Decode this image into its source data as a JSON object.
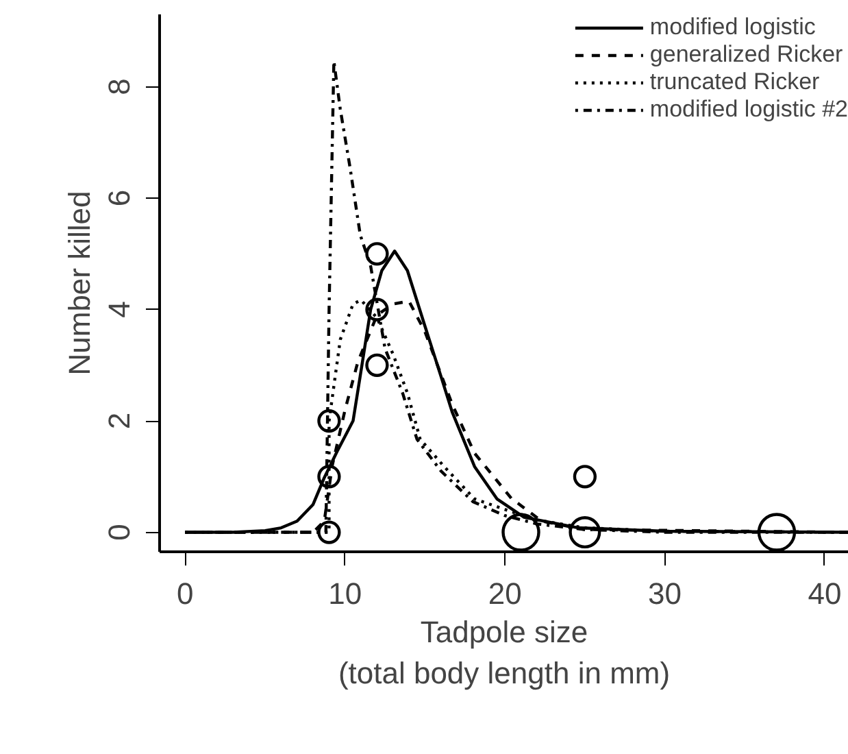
{
  "chart_data": {
    "type": "line",
    "xlabel": "Tadpole size\n(total body length in mm)",
    "ylabel": "Number killed",
    "xlim": [
      -1.6,
      41.5
    ],
    "ylim": [
      -0.35,
      9.3
    ],
    "xticks": [
      0,
      10,
      20,
      30,
      40
    ],
    "yticks": [
      0,
      2,
      4,
      6,
      8
    ],
    "grid": false,
    "legend": "top right",
    "marker": "none",
    "series": [
      {
        "name": "modified logistic",
        "color": "#000000",
        "line_style": "solid",
        "x": [
          0,
          3,
          5,
          6,
          7,
          8,
          8.7,
          9.5,
          10.5,
          11,
          11.6,
          12.3,
          13.1,
          13.9,
          15,
          16,
          16.7,
          18.1,
          19.5,
          21.2,
          24.6,
          30,
          41.5
        ],
        "values": [
          0,
          0,
          0.03,
          0.08,
          0.2,
          0.5,
          0.98,
          1.45,
          2.0,
          2.9,
          4.0,
          4.7,
          5.05,
          4.7,
          3.7,
          2.8,
          2.16,
          1.18,
          0.6,
          0.27,
          0.08,
          0.02,
          0
        ]
      },
      {
        "name": "generalized Ricker",
        "color": "#000000",
        "line_style": "dashed",
        "x": [
          0,
          8,
          8.7,
          9.2,
          10,
          10.8,
          12,
          13,
          14,
          15,
          16.7,
          18.1,
          20.4,
          22.3,
          25,
          41.5
        ],
        "values": [
          0,
          0,
          0.2,
          1.2,
          2.2,
          3.06,
          3.9,
          4.1,
          4.15,
          3.6,
          2.3,
          1.42,
          0.61,
          0.2,
          0.05,
          0
        ]
      },
      {
        "name": "truncated Ricker",
        "color": "#000000",
        "line_style": "dotted",
        "x": [
          0,
          9,
          9,
          9.7,
          10.5,
          11,
          12,
          13,
          13.9,
          14.7,
          16.2,
          18.1,
          20.4,
          22,
          25,
          30,
          41.5
        ],
        "values": [
          0,
          0,
          2.0,
          3.46,
          4.1,
          4.17,
          3.85,
          3.2,
          2.5,
          1.67,
          1.18,
          0.6,
          0.37,
          0.22,
          0.08,
          0.02,
          0
        ]
      },
      {
        "name": "modified logistic #2",
        "color": "#000000",
        "line_style": "dotdash",
        "x": [
          0,
          8.8,
          9.0,
          9.3,
          9.7,
          10.3,
          10.95,
          11.6,
          12.5,
          13.6,
          14.5,
          16,
          18,
          20,
          22,
          25,
          30,
          41.5
        ],
        "values": [
          0,
          0,
          4.0,
          8.46,
          7.6,
          6.57,
          5.34,
          4.78,
          3.3,
          2.5,
          1.67,
          1.1,
          0.55,
          0.3,
          0.15,
          0.05,
          0,
          0
        ]
      },
      {
        "type": "bubble",
        "color": "#000000",
        "marker": "circle",
        "x": [
          9,
          9,
          9,
          12,
          12,
          12,
          21,
          25,
          25,
          37
        ],
        "values": [
          0,
          1,
          2,
          3,
          4,
          5,
          0,
          0,
          1,
          0
        ],
        "sizes": [
          0.33,
          0.33,
          0.33,
          0.33,
          0.33,
          0.33,
          1,
          0.67,
          0.33,
          1
        ]
      }
    ]
  }
}
